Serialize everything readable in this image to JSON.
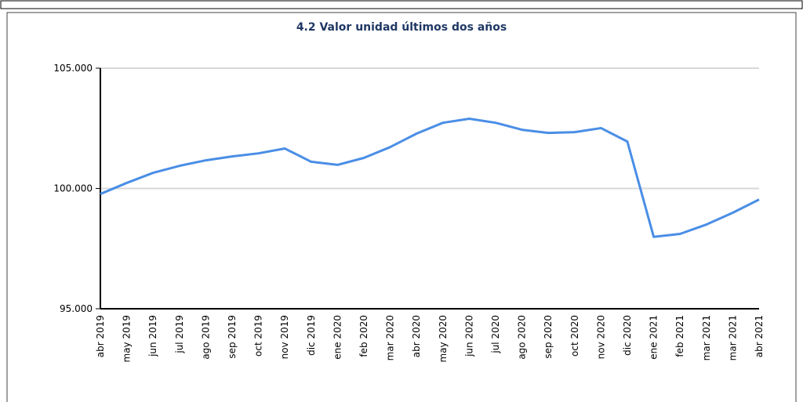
{
  "chart_data": {
    "type": "line",
    "title": "4.2 Valor unidad últimos dos años",
    "categories": [
      "abr 2019",
      "may 2019",
      "jun 2019",
      "jul 2019",
      "ago 2019",
      "sep 2019",
      "oct 2019",
      "nov 2019",
      "dic 2019",
      "ene 2020",
      "feb 2020",
      "mar 2020",
      "abr 2020",
      "may 2020",
      "jun 2020",
      "jul 2020",
      "ago 2020",
      "sep 2020",
      "oct 2020",
      "nov 2020",
      "dic 2020",
      "ene 2021",
      "feb 2021",
      "mar 2021",
      "mar 2021",
      "abr 2021"
    ],
    "series": [
      {
        "name": "Valor unidad",
        "color": "#4a8ee6",
        "values": [
          99770,
          100230,
          100650,
          100940,
          101170,
          101330,
          101460,
          101660,
          101110,
          100980,
          101270,
          101720,
          102280,
          102730,
          102900,
          102730,
          102440,
          102310,
          102340,
          102510,
          101950,
          97990,
          98110,
          98500,
          98990,
          99540
        ]
      }
    ],
    "ylim": [
      95000,
      105000
    ],
    "yticks": [
      {
        "value": 95000,
        "label": "95.000"
      },
      {
        "value": 100000,
        "label": "100.000"
      },
      {
        "value": 105000,
        "label": "105.000"
      }
    ],
    "grid": true
  }
}
